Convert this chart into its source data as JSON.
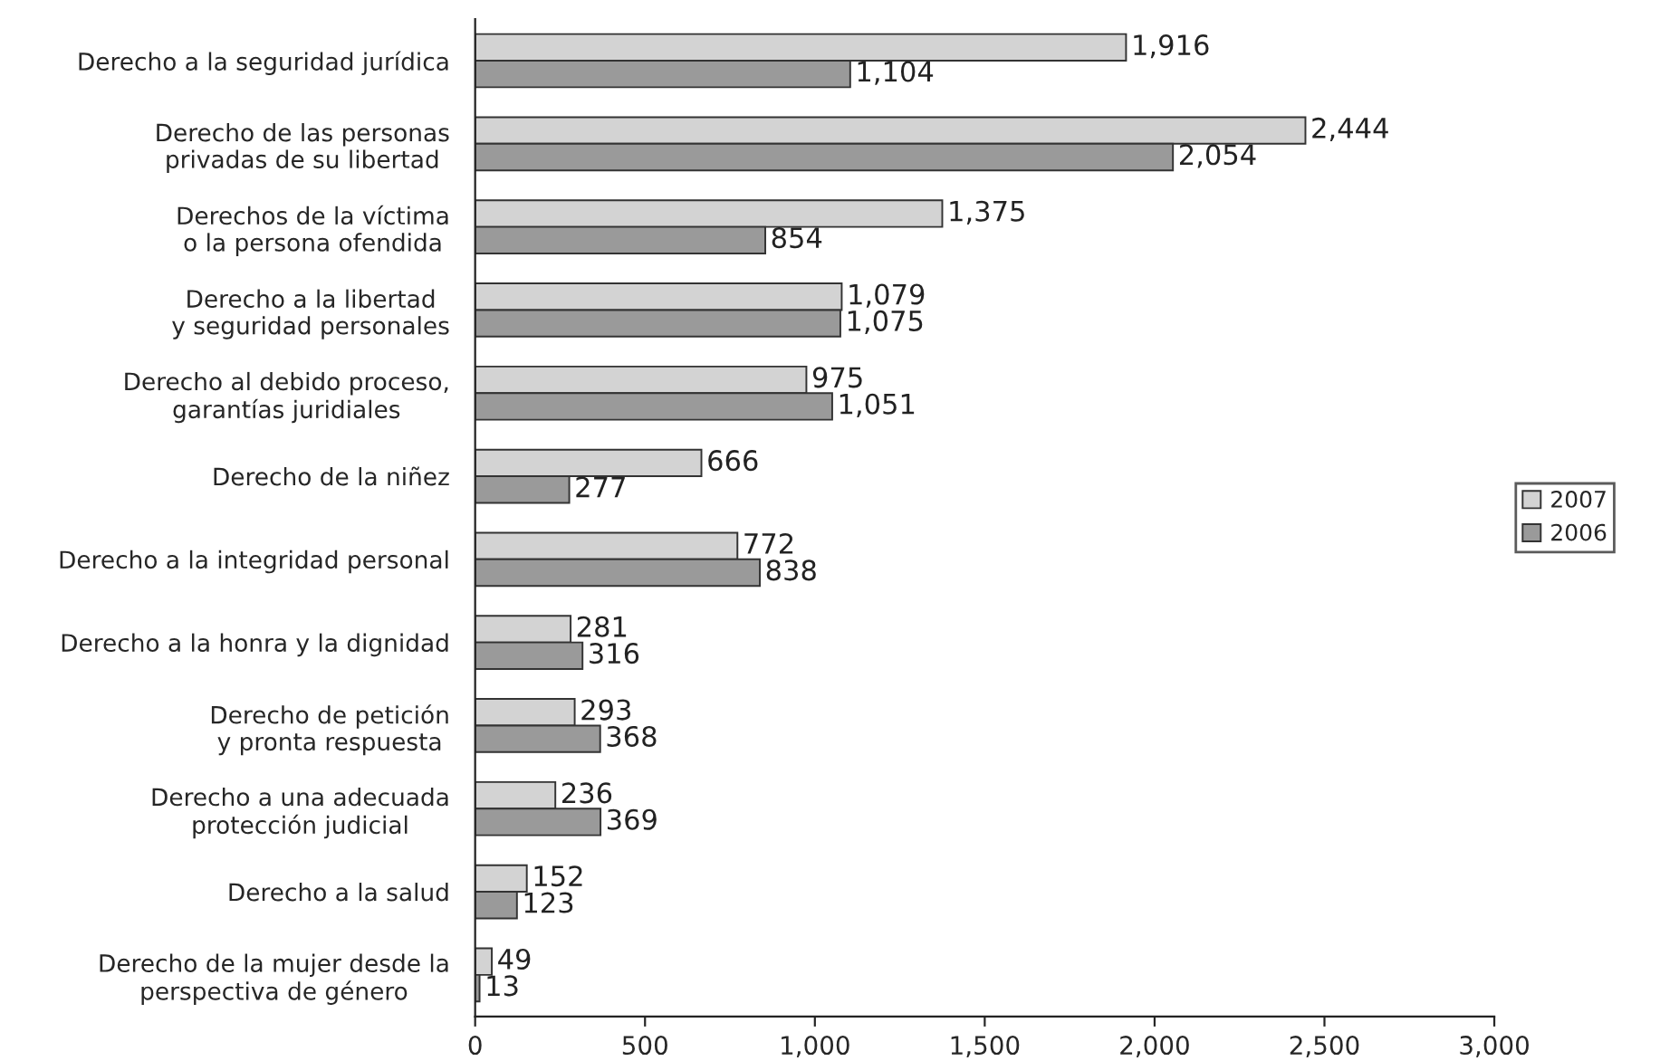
{
  "chart_data": {
    "type": "bar",
    "orientation": "horizontal",
    "categories": [
      "Derecho a la seguridad jurídica",
      "Derecho de las personas\nprivadas de su libertad",
      "Derechos de la víctima\no la persona ofendida",
      "Derecho a la libertad\ny seguridad personales",
      "Derecho al debido proceso,\ngarantías juridiales",
      "Derecho de la niñez",
      "Derecho a la integridad personal",
      "Derecho a la honra y la dignidad",
      "Derecho de petición\ny pronta respuesta",
      "Derecho a una adecuada\nprotección judicial",
      "Derecho a la salud",
      "Derecho de la mujer desde la\nperspectiva de género"
    ],
    "series": [
      {
        "name": "2007",
        "color": "#d3d3d3",
        "values": [
          1916,
          2444,
          1375,
          1079,
          975,
          666,
          772,
          281,
          293,
          236,
          152,
          49
        ],
        "value_labels": [
          "1,916",
          "2,444",
          "1,375",
          "1,079",
          "975",
          "666",
          "772",
          "281",
          "293",
          "236",
          "152",
          "49"
        ]
      },
      {
        "name": "2006",
        "color": "#9a9a9a",
        "values": [
          1104,
          2054,
          854,
          1075,
          1051,
          277,
          838,
          316,
          368,
          369,
          123,
          13
        ],
        "value_labels": [
          "1,104",
          "2,054",
          "854",
          "1,075",
          "1,051",
          "277",
          "838",
          "316",
          "368",
          "369",
          "123",
          "13"
        ]
      }
    ],
    "xlim": [
      0,
      3000
    ],
    "xticks": [
      0,
      500,
      {
        "value": 1000,
        "label": "1,000"
      },
      {
        "value": 1500,
        "label": "1,500"
      },
      {
        "value": 2000,
        "label": "2,000"
      },
      {
        "value": 2500,
        "label": "2,500"
      },
      {
        "value": 3000,
        "label": "3,000"
      }
    ],
    "legend": "right",
    "grid": false
  }
}
